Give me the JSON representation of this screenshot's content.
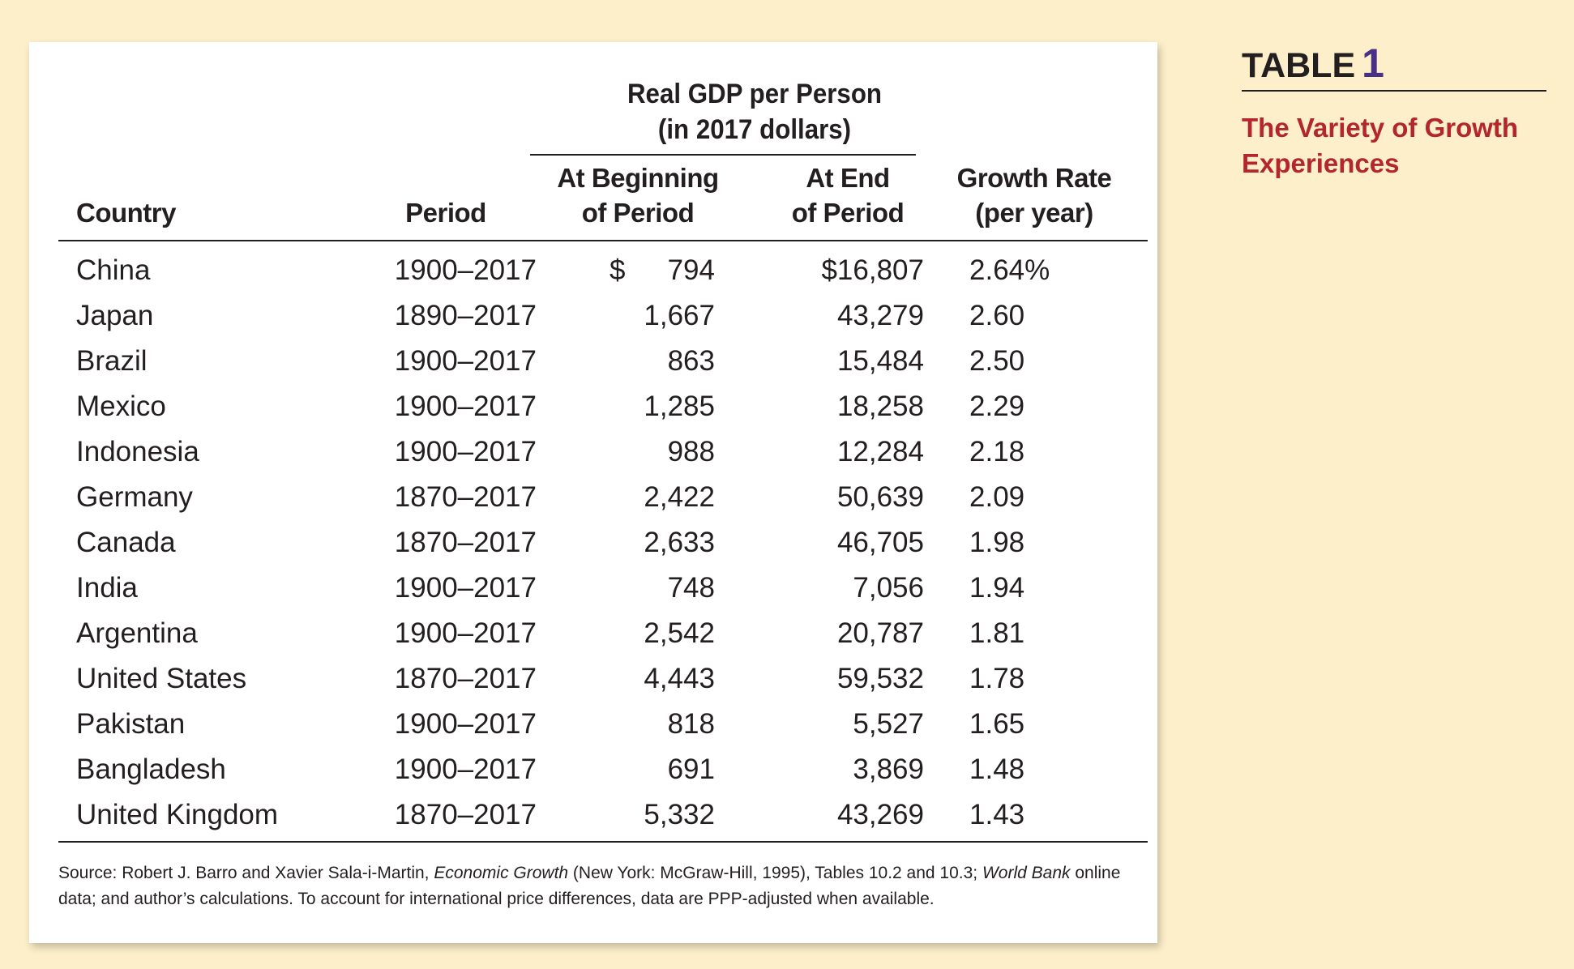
{
  "side": {
    "label": "TABLE",
    "number": "1",
    "title": "The Variety of Growth Experiences"
  },
  "header": {
    "group_line1": "Real GDP per Person",
    "group_line2": "(in 2017 dollars)",
    "country": "Country",
    "period": "Period",
    "begin_line1": "At Beginning",
    "begin_line2": "of Period",
    "end_line1": "At End",
    "end_line2": "of Period",
    "growth_line1": "Growth Rate",
    "growth_line2": "(per year)"
  },
  "currency_symbol": "$",
  "rows": [
    {
      "country": "China",
      "period": "1900–2017",
      "begin": "794",
      "end": "$16,807",
      "growth": "2.64%"
    },
    {
      "country": "Japan",
      "period": "1890–2017",
      "begin": "1,667",
      "end": "43,279",
      "growth": "2.60"
    },
    {
      "country": "Brazil",
      "period": "1900–2017",
      "begin": "863",
      "end": "15,484",
      "growth": "2.50"
    },
    {
      "country": "Mexico",
      "period": "1900–2017",
      "begin": "1,285",
      "end": "18,258",
      "growth": "2.29"
    },
    {
      "country": "Indonesia",
      "period": "1900–2017",
      "begin": "988",
      "end": "12,284",
      "growth": "2.18"
    },
    {
      "country": "Germany",
      "period": "1870–2017",
      "begin": "2,422",
      "end": "50,639",
      "growth": "2.09"
    },
    {
      "country": "Canada",
      "period": "1870–2017",
      "begin": "2,633",
      "end": "46,705",
      "growth": "1.98"
    },
    {
      "country": "India",
      "period": "1900–2017",
      "begin": "748",
      "end": "7,056",
      "growth": "1.94"
    },
    {
      "country": "Argentina",
      "period": "1900–2017",
      "begin": "2,542",
      "end": "20,787",
      "growth": "1.81"
    },
    {
      "country": "United States",
      "period": "1870–2017",
      "begin": "4,443",
      "end": "59,532",
      "growth": "1.78"
    },
    {
      "country": "Pakistan",
      "period": "1900–2017",
      "begin": "818",
      "end": "5,527",
      "growth": "1.65"
    },
    {
      "country": "Bangladesh",
      "period": "1900–2017",
      "begin": "691",
      "end": "3,869",
      "growth": "1.48"
    },
    {
      "country": "United Kingdom",
      "period": "1870–2017",
      "begin": "5,332",
      "end": "43,269",
      "growth": "1.43"
    }
  ],
  "source": {
    "prefix": "Source: Robert J. Barro and Xavier Sala-i-Martin, ",
    "book": "Economic Growth",
    "middle": " (New York: McGraw-Hill, 1995), Tables 10.2 and 10.3; ",
    "bank": "World Bank",
    "suffix": " online data; and author’s calculations. To account for international price differences, data are PPP-adjusted when available."
  }
}
